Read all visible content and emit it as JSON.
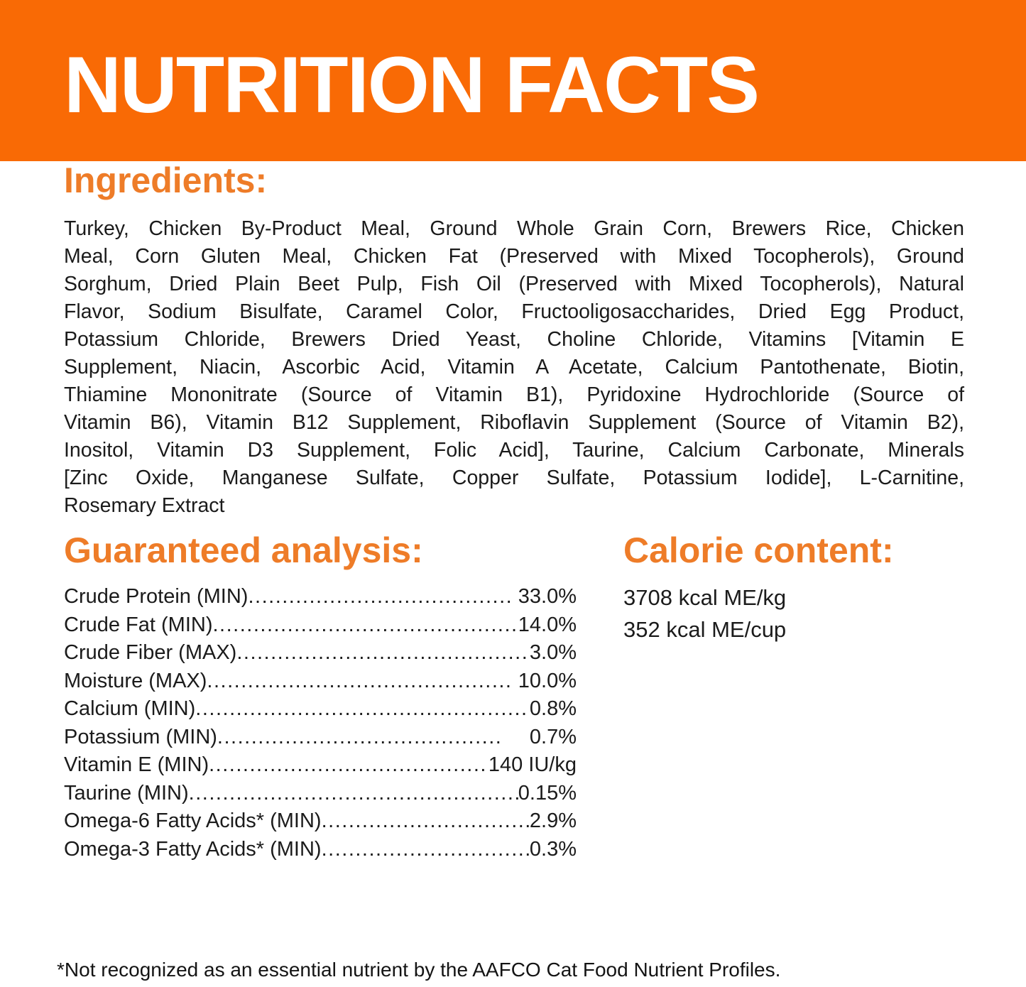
{
  "header": {
    "title": "NUTRITION FACTS",
    "band_color": "#F96A05",
    "title_color": "#FFFFFF"
  },
  "accent_color": "#EE7C28",
  "ingredients": {
    "heading": "Ingredients:",
    "lines": [
      "Turkey, Chicken By-Product Meal, Ground Whole Grain Corn, Brewers Rice, Chicken",
      "Meal, Corn Gluten Meal, Chicken Fat (Preserved with Mixed Tocopherols), Ground",
      "Sorghum, Dried Plain Beet Pulp, Fish Oil (Preserved with Mixed Tocopherols), Natural",
      "Flavor, Sodium Bisulfate, Caramel Color, Fructooligosaccharides, Dried Egg Product,",
      "Potassium Chloride, Brewers Dried Yeast, Choline Chloride, Vitamins [Vitamin E",
      "Supplement, Niacin, Ascorbic Acid, Vitamin A Acetate, Calcium Pantothenate, Biotin,",
      "Thiamine Mononitrate (Source of Vitamin B1), Pyridoxine Hydrochloride (Source of",
      "Vitamin B6), Vitamin B12 Supplement, Riboflavin Supplement (Source of Vitamin B2),",
      "Inositol, Vitamin D3 Supplement, Folic Acid], Taurine, Calcium Carbonate, Minerals",
      "[Zinc Oxide, Manganese Sulfate, Copper Sulfate, Potassium Iodide], L-Carnitine,",
      "Rosemary Extract"
    ]
  },
  "analysis": {
    "heading": "Guaranteed analysis:",
    "rows": [
      {
        "label": "Crude Protein (MIN)",
        "value": "33.0%",
        "gap": 12
      },
      {
        "label": "Crude Fat (MIN)",
        "value": "14.0%",
        "gap": 0
      },
      {
        "label": "Crude Fiber (MAX)",
        "value": "3.0%",
        "gap": 0
      },
      {
        "label": "Moisture (MAX)",
        "value": "10.0%",
        "gap": 12
      },
      {
        "label": "Calcium (MIN)",
        "value": "0.8%",
        "gap": 0
      },
      {
        "label": "Potassium (MIN)",
        "value": "0.7%",
        "gap": 42
      },
      {
        "label": "Vitamin E (MIN)",
        "value": "140 IU/kg",
        "gap": 0
      },
      {
        "label": "Taurine (MIN)",
        "value": "0.15%",
        "gap": 0
      },
      {
        "label": "Omega-6 Fatty Acids* (MIN)",
        "value": "2.9%",
        "gap": 0
      },
      {
        "label": "Omega-3 Fatty Acids* (MIN)",
        "value": "0.3%",
        "gap": 0
      }
    ]
  },
  "calories": {
    "heading": "Calorie content:",
    "lines": [
      "3708 kcal ME/kg",
      "352 kcal ME/cup"
    ]
  },
  "footnote": "*Not recognized as an essential nutrient by the AAFCO Cat Food Nutrient Profiles."
}
